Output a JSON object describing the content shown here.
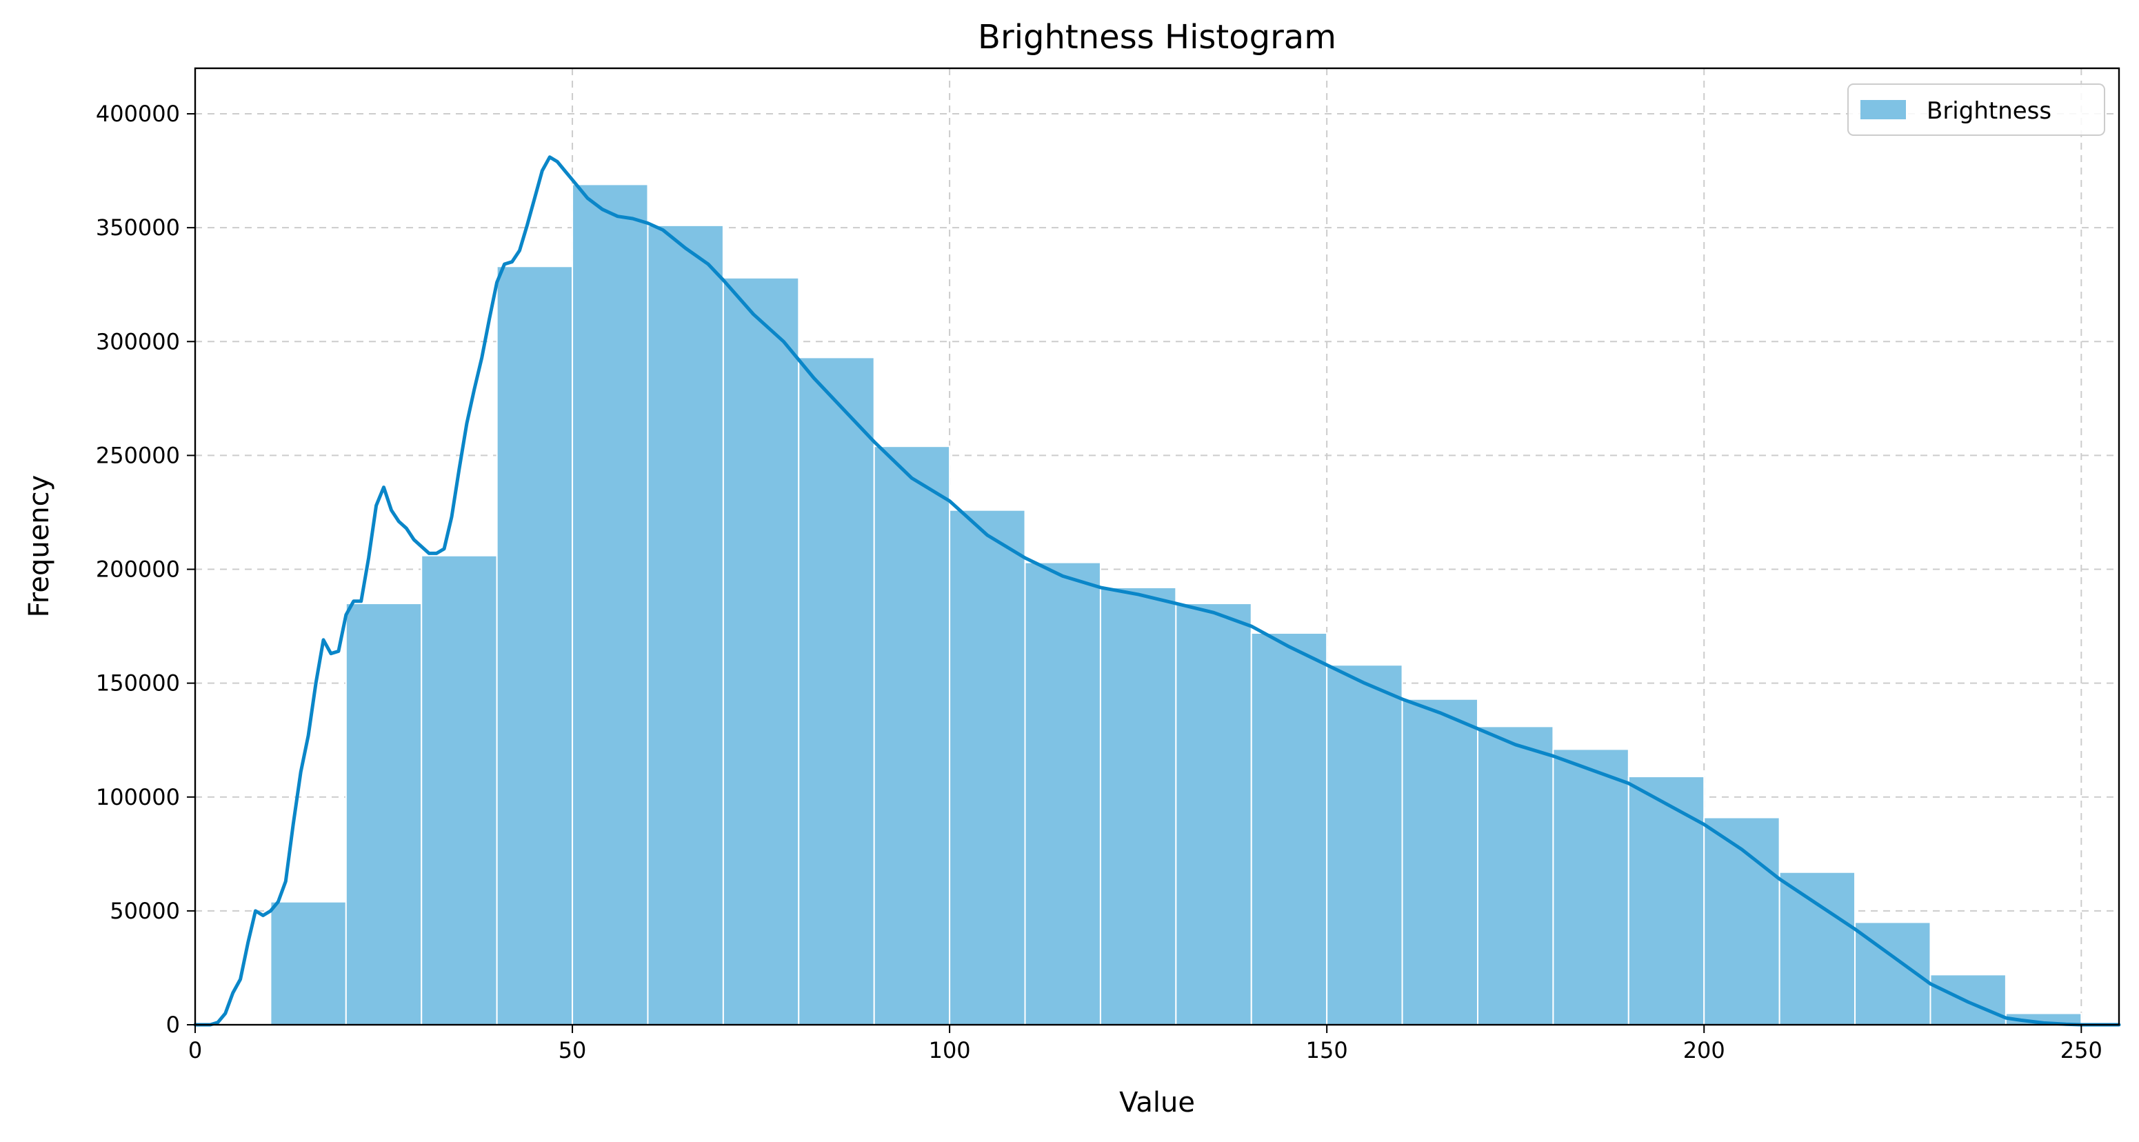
{
  "chart_data": {
    "type": "bar",
    "title": "Brightness Histogram",
    "xlabel": "Value",
    "ylabel": "Frequency",
    "xlim": [
      0,
      255
    ],
    "ylim": [
      0,
      420000
    ],
    "xticks": [
      0,
      50,
      100,
      150,
      200,
      250
    ],
    "yticks": [
      0,
      50000,
      100000,
      150000,
      200000,
      250000,
      300000,
      350000,
      400000
    ],
    "grid": true,
    "legend_position": "top-right",
    "colors": {
      "bars": "#7fc2e4",
      "bar_edge": "#ffffff",
      "kde": "#0a86c8",
      "grid": "#cccccc"
    },
    "series": [
      {
        "name": "Brightness",
        "kind": "histogram",
        "bin_edges": [
          10,
          20,
          30,
          40,
          50,
          60,
          70,
          80,
          90,
          100,
          110,
          120,
          130,
          140,
          150,
          160,
          170,
          180,
          190,
          200,
          210,
          220,
          230,
          240,
          250
        ],
        "values": [
          54000,
          185000,
          206000,
          333000,
          369000,
          351000,
          328000,
          293000,
          254000,
          226000,
          203000,
          192000,
          185000,
          172000,
          158000,
          143000,
          131000,
          121000,
          109000,
          91000,
          67000,
          45000,
          22000,
          5000
        ]
      },
      {
        "name": "",
        "kind": "kde",
        "x": [
          0,
          2,
          3,
          4,
          5,
          6,
          7,
          8,
          9,
          10,
          11,
          12,
          13,
          14,
          15,
          16,
          17,
          18,
          19,
          20,
          21,
          22,
          23,
          24,
          25,
          26,
          27,
          28,
          29,
          30,
          31,
          32,
          33,
          34,
          35,
          36,
          37,
          38,
          39,
          40,
          41,
          42,
          43,
          44,
          45,
          46,
          47,
          48,
          49,
          50,
          52,
          54,
          56,
          58,
          60,
          62,
          65,
          68,
          70,
          74,
          78,
          82,
          86,
          90,
          95,
          100,
          105,
          110,
          115,
          120,
          125,
          130,
          135,
          140,
          145,
          150,
          155,
          160,
          165,
          170,
          175,
          180,
          185,
          190,
          195,
          200,
          205,
          210,
          215,
          220,
          225,
          230,
          235,
          240,
          242,
          245,
          248,
          250,
          253,
          255
        ],
        "y": [
          0,
          0,
          1000,
          5000,
          14000,
          20000,
          36000,
          50000,
          48000,
          50000,
          54000,
          63000,
          88000,
          111000,
          127000,
          150000,
          169000,
          163000,
          164000,
          180000,
          186000,
          186000,
          205000,
          228000,
          236000,
          226000,
          221000,
          218000,
          213000,
          210000,
          207000,
          207000,
          209000,
          223000,
          244000,
          264000,
          279000,
          293000,
          310000,
          326000,
          334000,
          335000,
          340000,
          351000,
          363000,
          375000,
          381000,
          379000,
          375000,
          371000,
          363000,
          358000,
          355000,
          354000,
          352000,
          349000,
          341000,
          334000,
          327000,
          312000,
          300000,
          284000,
          270000,
          256000,
          240000,
          230000,
          215000,
          205000,
          197000,
          192000,
          189000,
          185000,
          181000,
          175000,
          166000,
          158000,
          150000,
          143000,
          137000,
          130000,
          123000,
          118000,
          112000,
          106000,
          97000,
          88000,
          77000,
          64000,
          53000,
          42000,
          30000,
          18000,
          10000,
          3000,
          2000,
          800,
          200,
          0,
          0,
          0
        ]
      }
    ]
  }
}
